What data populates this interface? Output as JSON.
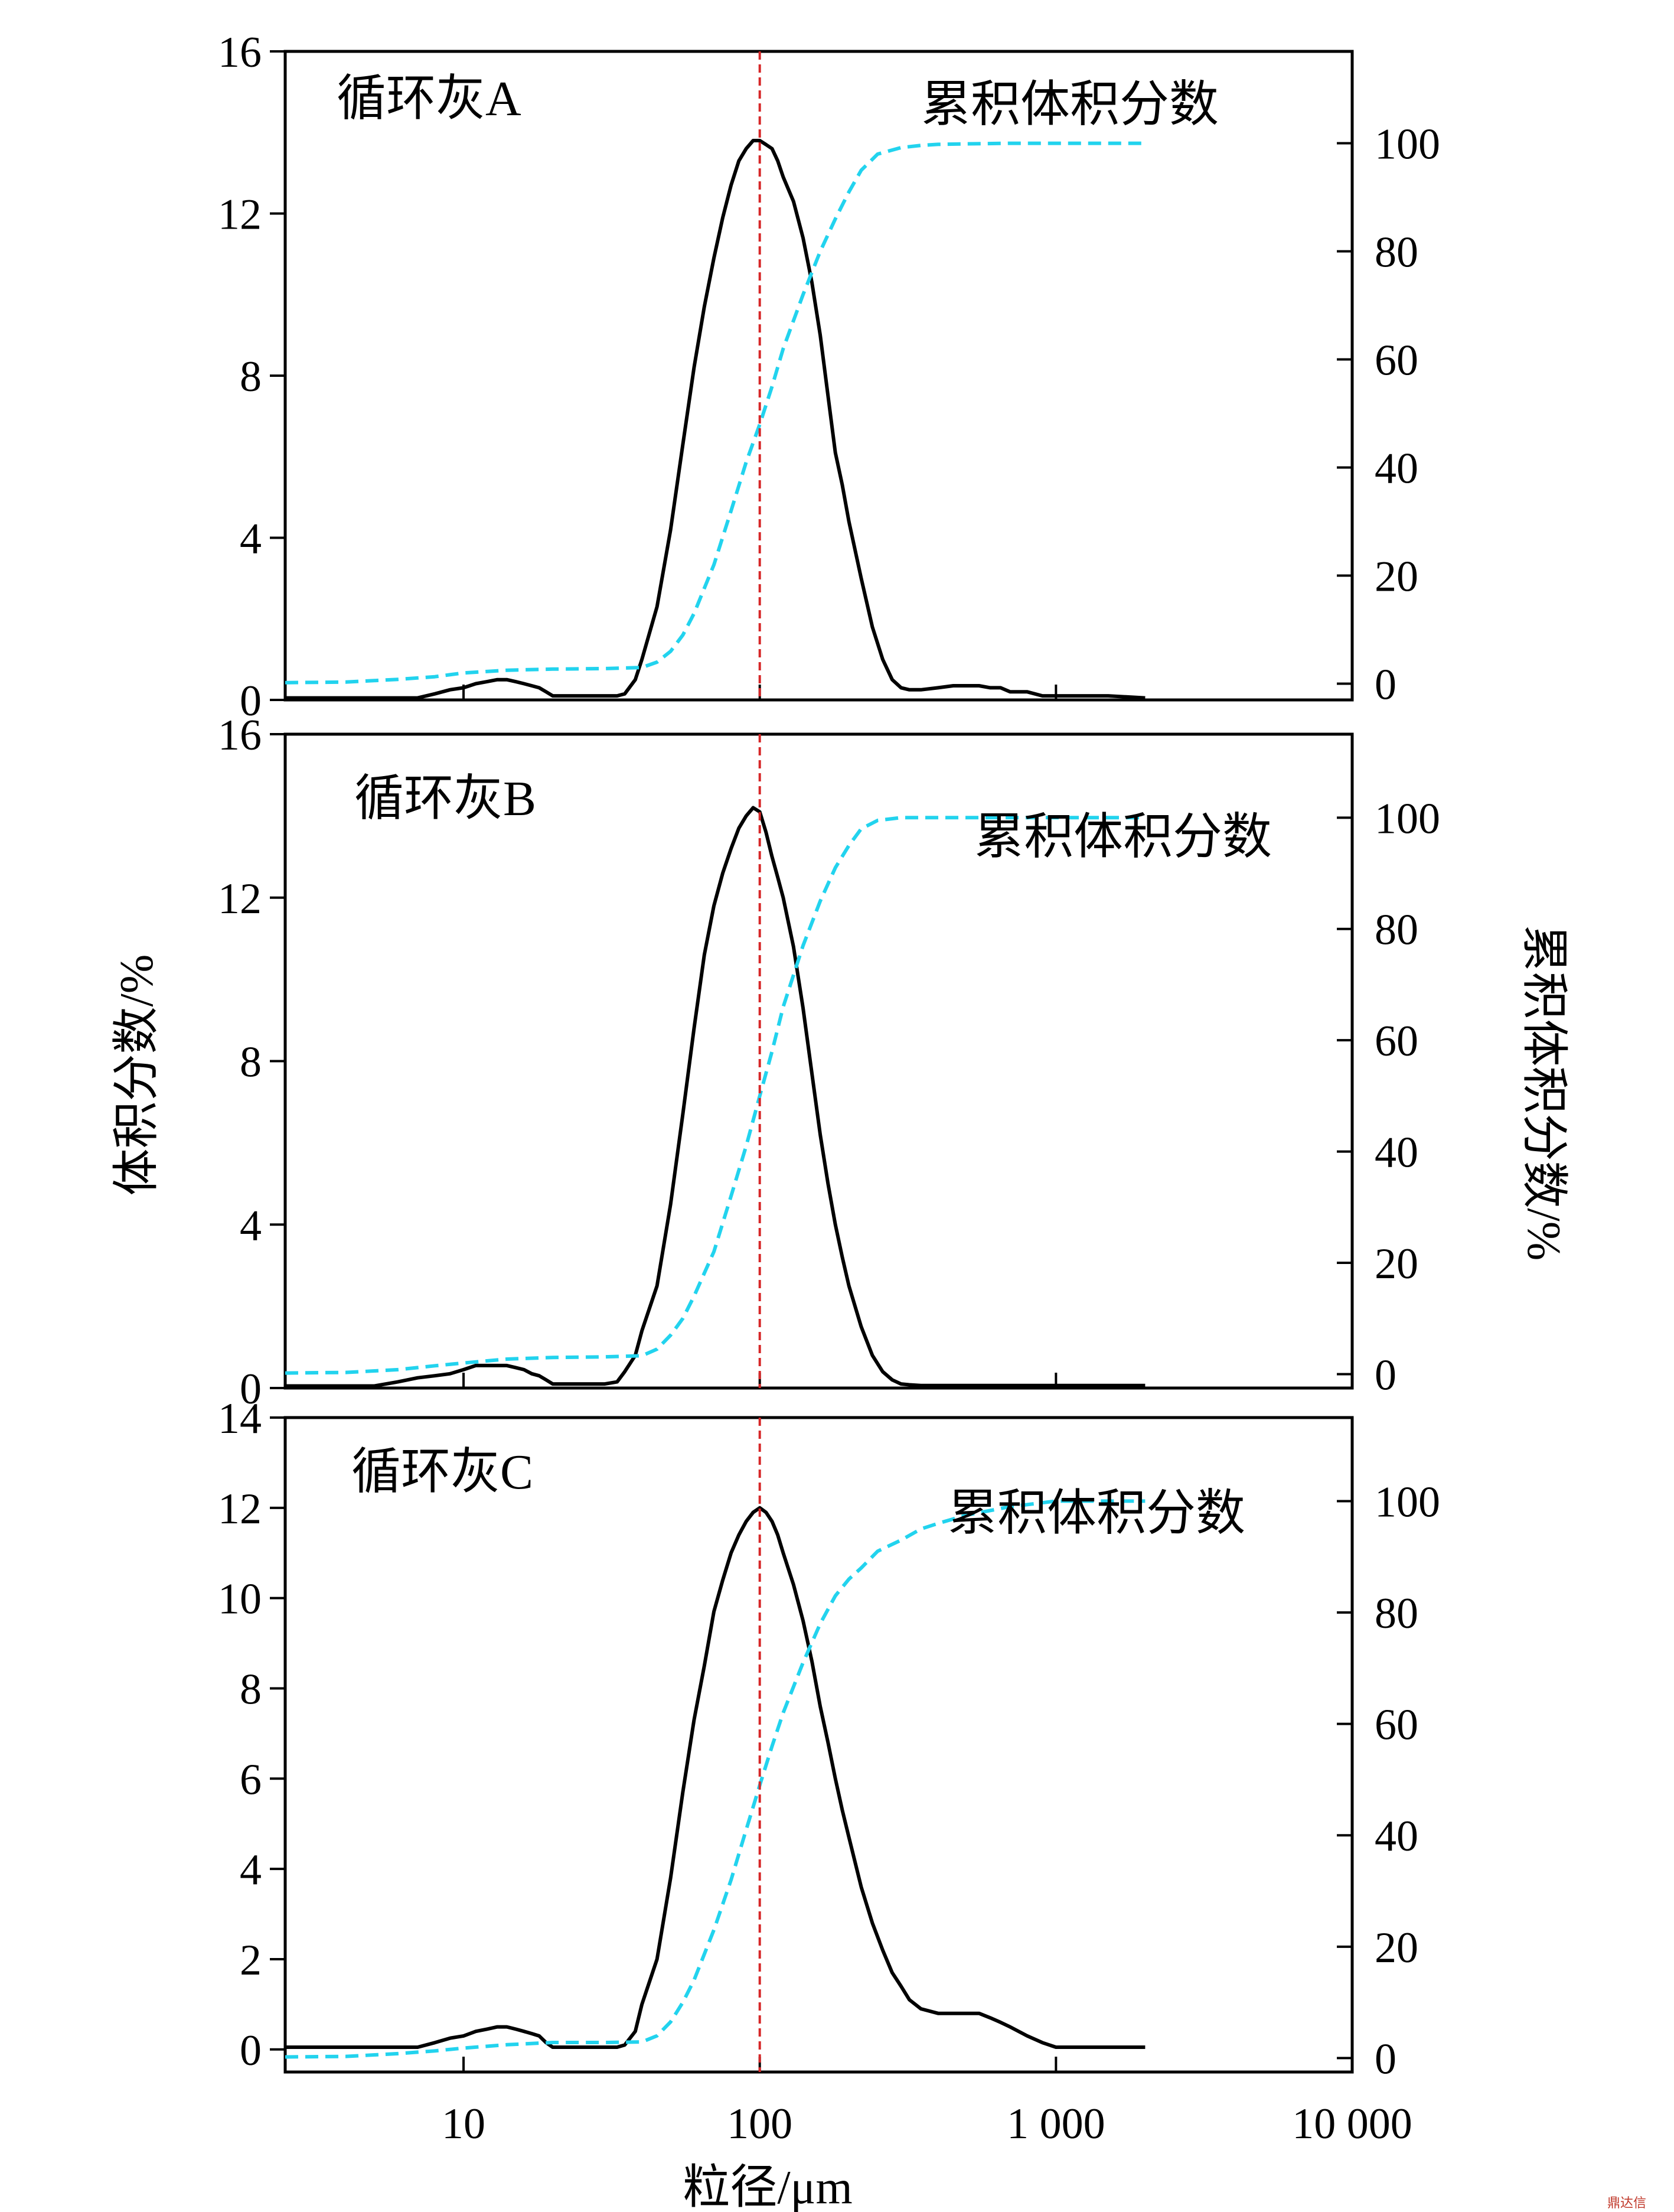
{
  "figure": {
    "xlabel": "粒径/μm",
    "ylabel_left": "体积分数/%",
    "ylabel_right": "累积体积分数/%",
    "watermark": "鼎达信"
  },
  "chart_data": [
    {
      "type": "line",
      "panel_label": "循环灰A",
      "series_label": "累积体积分数",
      "x_scale": "log",
      "xlim": [
        2.5,
        10000
      ],
      "ylim_left": [
        0,
        16
      ],
      "yticks_left": [
        0,
        4,
        8,
        12,
        16
      ],
      "ylim_right": [
        -3,
        117
      ],
      "yticks_right": [
        0,
        20,
        40,
        60,
        80,
        100
      ],
      "reference_x": 100,
      "reference_color": "#d62728",
      "series": [
        {
          "axis": "left",
          "color": "#000000",
          "style": "solid",
          "x": [
            2.5,
            3,
            4,
            5,
            6,
            7,
            8,
            9,
            10,
            11,
            12,
            13,
            14,
            15,
            16,
            17,
            18,
            19,
            20,
            22,
            25,
            28,
            30,
            33,
            35,
            38,
            40,
            45,
            50,
            55,
            60,
            65,
            70,
            75,
            80,
            85,
            90,
            95,
            100,
            105,
            110,
            115,
            120,
            130,
            140,
            150,
            160,
            170,
            180,
            190,
            200,
            220,
            240,
            260,
            280,
            300,
            320,
            350,
            400,
            450,
            500,
            550,
            600,
            650,
            700,
            800,
            900,
            1000,
            1200,
            1500,
            2000
          ],
          "y": [
            0.05,
            0.05,
            0.05,
            0.05,
            0.05,
            0.05,
            0.15,
            0.25,
            0.3,
            0.4,
            0.45,
            0.5,
            0.5,
            0.45,
            0.4,
            0.35,
            0.3,
            0.2,
            0.1,
            0.1,
            0.1,
            0.1,
            0.1,
            0.1,
            0.15,
            0.5,
            1.0,
            2.3,
            4.2,
            6.3,
            8.2,
            9.7,
            10.9,
            11.9,
            12.7,
            13.3,
            13.6,
            13.8,
            13.8,
            13.7,
            13.6,
            13.3,
            12.9,
            12.3,
            11.4,
            10.3,
            9.0,
            7.5,
            6.1,
            5.3,
            4.4,
            3.0,
            1.8,
            1.0,
            0.5,
            0.3,
            0.25,
            0.25,
            0.3,
            0.35,
            0.35,
            0.35,
            0.3,
            0.3,
            0.2,
            0.2,
            0.1,
            0.1,
            0.1,
            0.1,
            0.05
          ]
        },
        {
          "axis": "right",
          "color": "#22d3ee",
          "style": "dashed",
          "x": [
            2.5,
            4,
            6,
            8,
            10,
            14,
            20,
            30,
            40,
            45,
            50,
            55,
            60,
            70,
            80,
            90,
            100,
            110,
            120,
            140,
            160,
            180,
            200,
            220,
            250,
            300,
            350,
            400,
            500,
            700,
            1000,
            2000
          ],
          "y": [
            0.2,
            0.3,
            0.8,
            1.3,
            2.0,
            2.5,
            2.7,
            2.8,
            3.0,
            4.0,
            6.0,
            9.0,
            13.0,
            22.0,
            32.0,
            41.0,
            48.0,
            55.0,
            62.0,
            72.0,
            80.0,
            86.0,
            91.0,
            95.0,
            98.0,
            99.2,
            99.6,
            99.8,
            99.9,
            100.0,
            100.0,
            100.0
          ]
        }
      ]
    },
    {
      "type": "line",
      "panel_label": "循环灰B",
      "series_label": "累积体积分数",
      "x_scale": "log",
      "xlim": [
        2.5,
        10000
      ],
      "ylim_left": [
        0,
        16
      ],
      "yticks_left": [
        0,
        4,
        8,
        12,
        16
      ],
      "ylim_right": [
        -2.5,
        115
      ],
      "yticks_right": [
        0,
        20,
        40,
        60,
        80,
        100
      ],
      "reference_x": 100,
      "reference_color": "#d62728",
      "series": [
        {
          "axis": "left",
          "color": "#000000",
          "style": "solid",
          "x": [
            2.5,
            3,
            4,
            5,
            6,
            7,
            8,
            9,
            10,
            11,
            12,
            13,
            14,
            15,
            16,
            17,
            18,
            19,
            20,
            22,
            25,
            28,
            30,
            33,
            35,
            38,
            40,
            45,
            50,
            55,
            60,
            65,
            70,
            75,
            80,
            85,
            90,
            95,
            100,
            105,
            110,
            115,
            120,
            130,
            140,
            150,
            160,
            170,
            180,
            190,
            200,
            220,
            240,
            260,
            280,
            300,
            320,
            350,
            400,
            500,
            700,
            1000,
            1500,
            2000
          ],
          "y": [
            0.05,
            0.05,
            0.05,
            0.05,
            0.15,
            0.25,
            0.3,
            0.35,
            0.45,
            0.55,
            0.55,
            0.55,
            0.55,
            0.5,
            0.45,
            0.35,
            0.3,
            0.2,
            0.1,
            0.1,
            0.1,
            0.1,
            0.1,
            0.15,
            0.4,
            0.8,
            1.4,
            2.5,
            4.5,
            6.7,
            8.8,
            10.6,
            11.8,
            12.6,
            13.2,
            13.7,
            14.0,
            14.2,
            14.1,
            13.6,
            13.0,
            12.5,
            12.0,
            10.8,
            9.3,
            7.7,
            6.2,
            5.0,
            4.0,
            3.2,
            2.5,
            1.5,
            0.8,
            0.4,
            0.2,
            0.1,
            0.08,
            0.06,
            0.06,
            0.06,
            0.06,
            0.06,
            0.06,
            0.06
          ]
        },
        {
          "axis": "right",
          "color": "#22d3ee",
          "style": "dashed",
          "x": [
            2.5,
            4,
            6,
            8,
            10,
            14,
            20,
            30,
            40,
            45,
            50,
            55,
            60,
            70,
            80,
            90,
            100,
            110,
            120,
            140,
            160,
            180,
            200,
            220,
            250,
            300,
            350,
            400,
            500,
            700,
            1000,
            2000
          ],
          "y": [
            0.2,
            0.3,
            0.8,
            1.5,
            2.0,
            2.7,
            3.0,
            3.1,
            3.3,
            4.5,
            7.0,
            10.0,
            14.0,
            22.0,
            32.0,
            41.0,
            50.0,
            58.0,
            66.0,
            77.0,
            85.0,
            91.0,
            95.0,
            98.0,
            99.5,
            100.0,
            100.0,
            100.0,
            100.0,
            100.0,
            100.0,
            100.0
          ]
        }
      ]
    },
    {
      "type": "line",
      "panel_label": "循环灰C",
      "series_label": "累积体积分数",
      "x_scale": "log",
      "xlim": [
        2.5,
        10000
      ],
      "ylim_left": [
        -0.5,
        14
      ],
      "yticks_left": [
        0,
        2,
        4,
        6,
        8,
        10,
        12,
        14
      ],
      "ylim_right": [
        -2.5,
        115
      ],
      "yticks_right": [
        0,
        20,
        40,
        60,
        80,
        100
      ],
      "reference_x": 100,
      "reference_color": "#d62728",
      "series": [
        {
          "axis": "left",
          "color": "#000000",
          "style": "solid",
          "x": [
            2.5,
            3,
            4,
            5,
            6,
            7,
            8,
            9,
            10,
            11,
            12,
            13,
            14,
            15,
            16,
            17,
            18,
            19,
            20,
            22,
            25,
            28,
            30,
            33,
            35,
            38,
            40,
            45,
            50,
            55,
            60,
            65,
            70,
            75,
            80,
            85,
            90,
            95,
            100,
            105,
            110,
            115,
            120,
            130,
            140,
            150,
            160,
            170,
            180,
            190,
            200,
            220,
            240,
            260,
            280,
            300,
            320,
            350,
            400,
            450,
            500,
            550,
            600,
            650,
            700,
            800,
            900,
            1000,
            1200,
            1500,
            2000
          ],
          "y": [
            0.05,
            0.05,
            0.05,
            0.05,
            0.05,
            0.05,
            0.15,
            0.25,
            0.3,
            0.4,
            0.45,
            0.5,
            0.5,
            0.45,
            0.4,
            0.35,
            0.3,
            0.15,
            0.05,
            0.05,
            0.05,
            0.05,
            0.05,
            0.05,
            0.1,
            0.4,
            1.0,
            2.0,
            3.8,
            5.7,
            7.3,
            8.5,
            9.7,
            10.4,
            11.0,
            11.4,
            11.7,
            11.9,
            12.0,
            11.9,
            11.7,
            11.4,
            11.0,
            10.3,
            9.5,
            8.6,
            7.6,
            6.8,
            6.0,
            5.3,
            4.7,
            3.6,
            2.8,
            2.2,
            1.7,
            1.4,
            1.1,
            0.9,
            0.8,
            0.8,
            0.8,
            0.8,
            0.7,
            0.6,
            0.5,
            0.3,
            0.15,
            0.05,
            0.05,
            0.05,
            0.05
          ]
        },
        {
          "axis": "right",
          "color": "#22d3ee",
          "style": "dashed",
          "x": [
            2.5,
            4,
            6,
            8,
            10,
            14,
            20,
            30,
            40,
            45,
            50,
            55,
            60,
            70,
            80,
            90,
            100,
            110,
            120,
            140,
            160,
            180,
            200,
            220,
            250,
            300,
            350,
            400,
            500,
            700,
            1000,
            2000
          ],
          "y": [
            0.2,
            0.3,
            0.8,
            1.3,
            1.8,
            2.4,
            2.8,
            2.8,
            2.9,
            4.0,
            6.5,
            10.0,
            14.0,
            23.0,
            32.0,
            41.0,
            49.0,
            56.0,
            62.0,
            71.0,
            78.0,
            83.0,
            86.0,
            88.0,
            91.0,
            93.0,
            95.0,
            96.0,
            97.5,
            99.0,
            100.0,
            100.0
          ]
        }
      ]
    }
  ]
}
